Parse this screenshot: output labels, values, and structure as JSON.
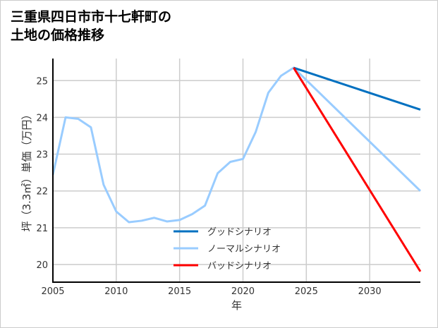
{
  "chart_data": {
    "type": "line",
    "title_lines": [
      "三重県四日市市十七軒町の",
      "土地の価格推移"
    ],
    "xlabel": "年",
    "ylabel": "坪（3.3㎡）単価（万円）",
    "xlim": [
      2005,
      2034
    ],
    "ylim": [
      19.52,
      25.6
    ],
    "xticks": [
      2005,
      2010,
      2015,
      2020,
      2025,
      2030
    ],
    "yticks": [
      20,
      21,
      22,
      23,
      24,
      25
    ],
    "grid": true,
    "legend_position": "bottom-center",
    "series": [
      {
        "name": "ノーマルシナリオ",
        "color": "#99ccff",
        "x": [
          2005,
          2006,
          2007,
          2008,
          2009,
          2010,
          2011,
          2012,
          2013,
          2014,
          2015,
          2016,
          2017,
          2018,
          2019,
          2020,
          2021,
          2022,
          2023,
          2024,
          2034
        ],
        "y": [
          22.44,
          24.0,
          23.96,
          23.73,
          22.17,
          21.44,
          21.15,
          21.19,
          21.27,
          21.17,
          21.21,
          21.37,
          21.6,
          22.48,
          22.79,
          22.87,
          23.6,
          24.67,
          25.13,
          25.35,
          22.0
        ]
      },
      {
        "name": "グッドシナリオ",
        "color": "#0070c0",
        "x": [
          2024,
          2034
        ],
        "y": [
          25.35,
          24.21
        ]
      },
      {
        "name": "バッドシナリオ",
        "color": "#ff0000",
        "x": [
          2024,
          2034
        ],
        "y": [
          25.35,
          19.81
        ]
      }
    ],
    "legend_order": [
      1,
      0,
      2
    ]
  }
}
